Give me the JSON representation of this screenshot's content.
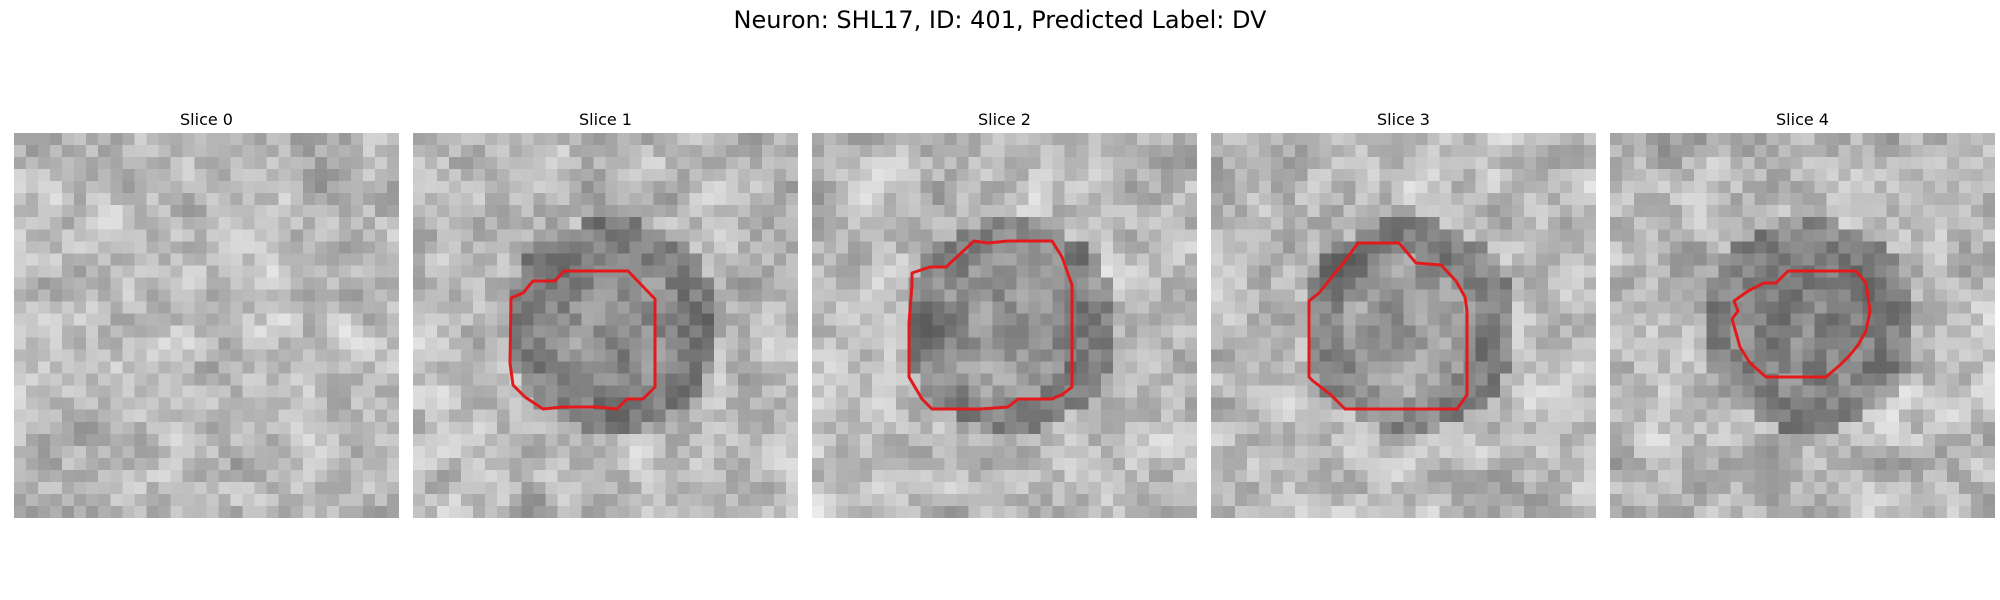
{
  "figure": {
    "title": "Neuron: SHL17, ID: 401, Predicted Label: DV",
    "contour_color": "#e31a1c"
  },
  "slices": [
    {
      "title": "Slice 0",
      "seed": 11,
      "has_contour": false,
      "darkness": 0.0
    },
    {
      "title": "Slice 1",
      "seed": 23,
      "has_contour": true,
      "darkness": 0.35
    },
    {
      "title": "Slice 2",
      "seed": 37,
      "has_contour": true,
      "darkness": 0.15
    },
    {
      "title": "Slice 3",
      "seed": 51,
      "has_contour": true,
      "darkness": 0.05
    },
    {
      "title": "Slice 4",
      "seed": 67,
      "has_contour": true,
      "darkness": 0.4
    }
  ]
}
